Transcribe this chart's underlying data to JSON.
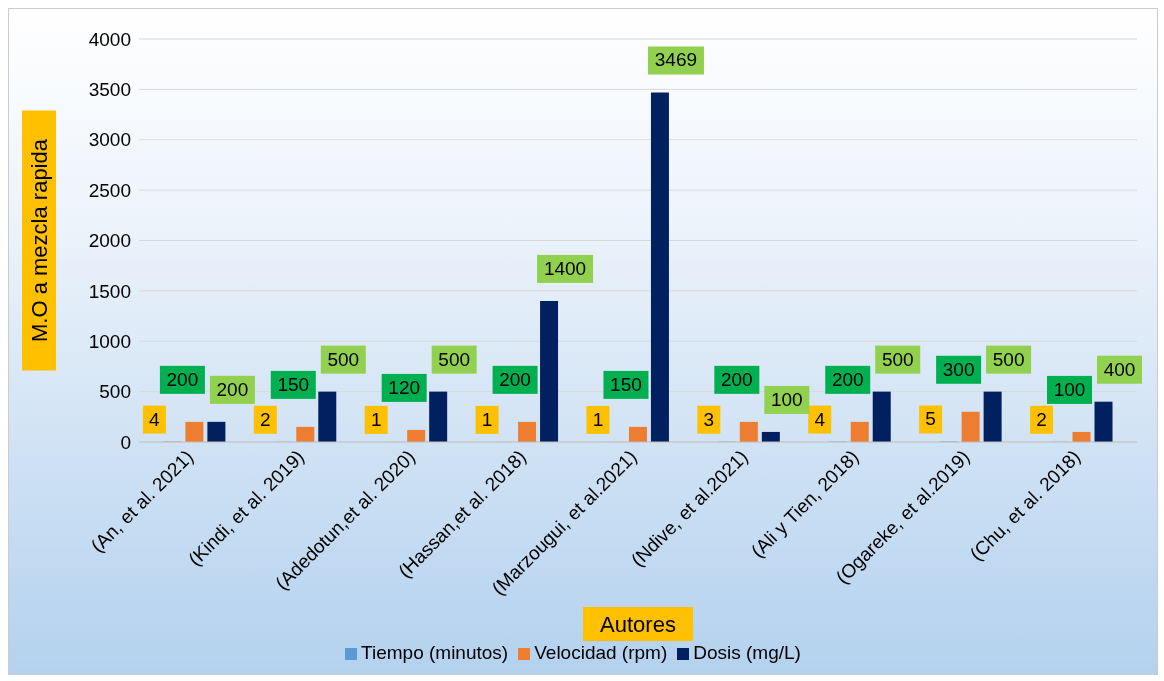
{
  "chart_data": {
    "type": "bar",
    "xlabel": "Autores",
    "ylabel": "M.O a mezcla rapida",
    "categories": [
      "(An, et al. 2021)",
      "(Kindi, et al. 2019)",
      "(Adedotun,et al. 2020)",
      "(Hassan,et al. 2018)",
      "(Marzougui, et al.2021)",
      "(Ndive, et al.2021)",
      "(Ali y Tien, 2018)",
      "(Ogareke, et al.2019)",
      "(Chu, et al. 2018)"
    ],
    "series": [
      {
        "name": "Tiempo (minutos)",
        "color": "#5b9bd5",
        "values": [
          4,
          2,
          1,
          1,
          1,
          3,
          4,
          5,
          2
        ]
      },
      {
        "name": "Velocidad (rpm)",
        "color": "#ed7d31",
        "values": [
          200,
          150,
          120,
          200,
          150,
          200,
          200,
          300,
          100
        ]
      },
      {
        "name": "Dosis (mg/L)",
        "color": "#002060",
        "values": [
          200,
          500,
          500,
          1400,
          3469,
          100,
          500,
          500,
          400
        ]
      }
    ],
    "ylim": [
      0,
      4000
    ],
    "yticks": [
      0,
      500,
      1000,
      1500,
      2000,
      2500,
      3000,
      3500,
      4000
    ],
    "grid": "y",
    "legend": "bottom",
    "data_labels": true
  }
}
